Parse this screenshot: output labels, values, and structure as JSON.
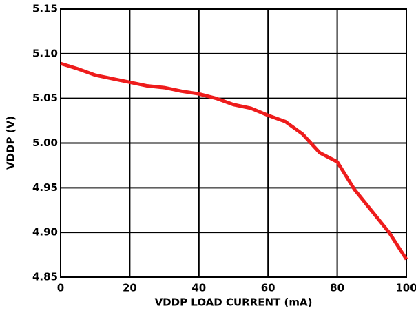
{
  "chart_data": {
    "type": "line",
    "xlabel": "VDDP LOAD CURRENT (mA)",
    "ylabel": "VDDP (V)",
    "xlim": [
      0,
      100
    ],
    "xticks": [
      0,
      20,
      40,
      60,
      80,
      100
    ],
    "ylim": [
      4.85,
      5.15
    ],
    "yticks": [
      4.85,
      {
        "value": 4.9,
        "label": "4.90"
      },
      4.95,
      {
        "value": 5.0,
        "label": "5.00"
      },
      5.05,
      {
        "value": 5.1,
        "label": "5.10"
      },
      5.15
    ],
    "grid": true,
    "series": [
      {
        "color": "#ee1c1c",
        "x": [
          0,
          5,
          10,
          15,
          20,
          25,
          30,
          35,
          40,
          45,
          50,
          55,
          60,
          65,
          70,
          75,
          80,
          85,
          90,
          95,
          100
        ],
        "values": [
          5.089,
          5.083,
          5.076,
          5.072,
          5.068,
          5.064,
          5.062,
          5.058,
          5.055,
          5.05,
          5.043,
          5.039,
          5.031,
          5.024,
          5.01,
          4.989,
          4.979,
          4.948,
          4.924,
          4.9,
          4.87
        ]
      }
    ]
  }
}
